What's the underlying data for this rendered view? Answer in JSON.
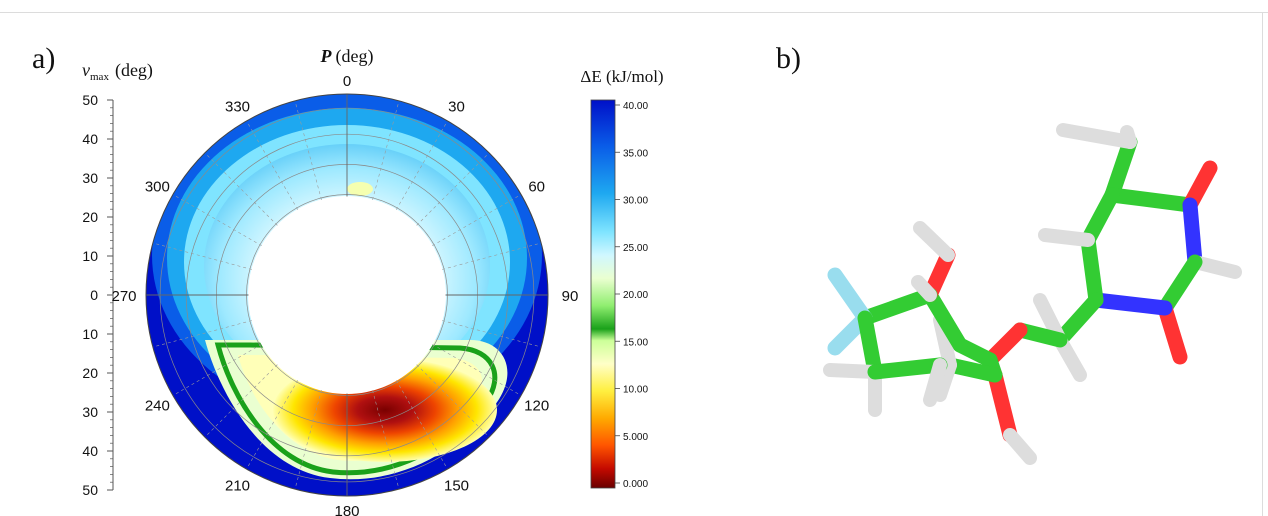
{
  "panel_a": {
    "label": "a)",
    "ylabel_symbol": "ν",
    "ylabel_sub": "max",
    "ylabel_unit": "(deg)",
    "title_symbol": "P",
    "title_unit": "(deg)",
    "yticks": [
      "50",
      "40",
      "30",
      "20",
      "10",
      "0",
      "10",
      "20",
      "30",
      "40",
      "50"
    ],
    "angle_labels": [
      "0",
      "30",
      "60",
      "90",
      "120",
      "150",
      "180",
      "210",
      "240",
      "270",
      "300",
      "330"
    ],
    "colorbar": {
      "title": "ΔE (kJ/mol)",
      "ticks": [
        "40.00",
        "35.00",
        "30.00",
        "25.00",
        "20.00",
        "15.00",
        "10.00",
        "5.000",
        "0.000"
      ]
    }
  },
  "panel_b": {
    "label": "b)"
  },
  "chart_data": {
    "type": "heatmap",
    "title": "P (deg)",
    "xlabel": "P (deg)",
    "ylabel": "νmax (deg)",
    "projection": "polar",
    "angle_ticks": [
      0,
      30,
      60,
      90,
      120,
      150,
      180,
      210,
      240,
      270,
      300,
      330
    ],
    "radial_range": [
      0,
      50
    ],
    "colorbar_label": "ΔE (kJ/mol)",
    "colorbar_range": [
      0,
      40
    ],
    "colorbar_ticks": [
      40,
      35,
      30,
      25,
      20,
      15,
      10,
      5,
      0
    ],
    "grid": true,
    "global_minimum": {
      "P": 160,
      "nu_max": 33,
      "energy": 0
    },
    "secondary_minimum": {
      "P": 0,
      "nu_max": 24,
      "energy": 18
    },
    "colors": {
      "low": "#7a0000",
      "mid": "#ffff66",
      "green": "#1aa11a",
      "high": "#0010c8"
    }
  }
}
